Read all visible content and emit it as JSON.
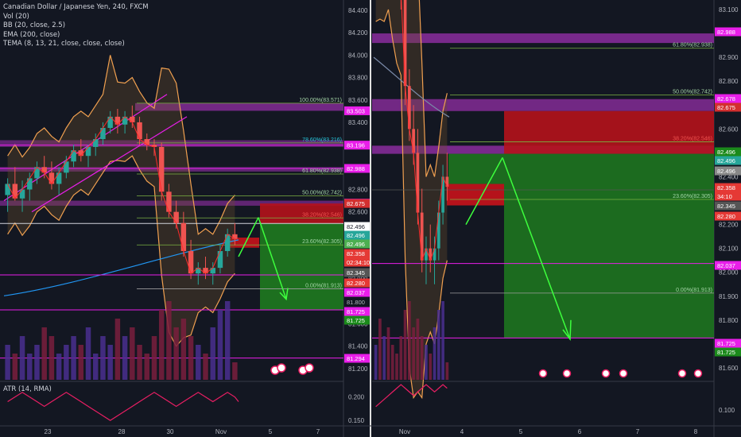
{
  "legend": {
    "title": "Canadian Dollar / Japanese Yen, 240, FXCM",
    "lines": [
      "Vol (20)",
      "BB (20, close, 2.5)",
      "EMA (200, close)",
      "TEMA (8, 13, 21, close, close, close)"
    ],
    "atr": "ATR (14, RMA)"
  },
  "colors": {
    "bg": "#131722",
    "up": "#26a69a",
    "down": "#ef5350",
    "magenta": "#e91ee9",
    "purple_zone": "#8b2d9e",
    "red_zone": "#b5121b",
    "green_zone": "#1f7a1f",
    "bb": "#f0a050",
    "ema": "#2196f3",
    "tema": "#ff2a2a",
    "arrow": "#3dff3d",
    "atr": "#e91e63",
    "axis_text": "#b2b5be"
  },
  "left_axis": {
    "ticks": [
      "84.400",
      "84.200",
      "84.000",
      "83.800",
      "83.600",
      "83.400",
      "83.200",
      "83.000",
      "82.800",
      "82.600",
      "82.400",
      "82.200",
      "82.000",
      "81.800",
      "81.600",
      "81.400",
      "81.200"
    ],
    "atr_ticks": [
      "0.200",
      "0.150"
    ],
    "time_ticks": [
      "23",
      "28",
      "30",
      "Nov",
      "5",
      "7"
    ],
    "tags": [
      {
        "text": "83.503",
        "c": "#e91ee9"
      },
      {
        "text": "83.196",
        "c": "#e91ee9"
      },
      {
        "text": "82.988",
        "c": "#e91ee9"
      },
      {
        "text": "82.678",
        "c": "#e91ee9"
      },
      {
        "text": "82.675",
        "c": "#d32f2f"
      },
      {
        "text": "82.496",
        "c": "#ffffff"
      },
      {
        "text": "82.496",
        "c": "#26a69a"
      },
      {
        "text": "82.496",
        "c": "#4caf50"
      },
      {
        "text": "82.358",
        "c": "#e53935"
      },
      {
        "text": "02:34:10",
        "c": "#e53935"
      },
      {
        "text": "82.345",
        "c": "#555555"
      },
      {
        "text": "82.280",
        "c": "#e53935"
      },
      {
        "text": "82.037",
        "c": "#e91ee9"
      },
      {
        "text": "81.800",
        "c": "#131722"
      },
      {
        "text": "81.725",
        "c": "#e91ee9"
      },
      {
        "text": "81.725",
        "c": "#1b8a1b"
      },
      {
        "text": "81.294",
        "c": "#e91ee9"
      }
    ]
  },
  "right_axis": {
    "ticks": [
      "83.100",
      "82.900",
      "82.800",
      "82.600",
      "82.400",
      "82.200",
      "82.100",
      "82.000",
      "81.900",
      "81.800",
      "81.600"
    ],
    "atr_ticks": [
      "0.100"
    ],
    "time_ticks": [
      "Nov",
      "4",
      "5",
      "6",
      "7",
      "8"
    ],
    "tags": [
      {
        "text": "82.988",
        "c": "#e91ee9"
      },
      {
        "text": "82.678",
        "c": "#e91ee9"
      },
      {
        "text": "82.675",
        "c": "#d32f2f"
      },
      {
        "text": "82.496",
        "c": "#1b8a1b"
      },
      {
        "text": "82.496",
        "c": "#26a69a"
      },
      {
        "text": "82.496",
        "c": "#888888"
      },
      {
        "text": "82.358",
        "c": "#e53935"
      },
      {
        "text": "34:10",
        "c": "#e53935"
      },
      {
        "text": "82.345",
        "c": "#555555"
      },
      {
        "text": "82.280",
        "c": "#e53935"
      },
      {
        "text": "82.037",
        "c": "#e91ee9"
      },
      {
        "text": "81.725",
        "c": "#e91ee9"
      },
      {
        "text": "81.725",
        "c": "#1b8a1b"
      }
    ]
  },
  "fib_left": [
    "100.00%(83.571)",
    "78.60%(83.216)",
    "61.80%(82.938)",
    "50.00%(82.742)",
    "38.20%(82.546)",
    "23.60%(82.305)",
    "0.00%(81.913)"
  ],
  "fib_right": [
    "61.80%(82.938)",
    "50.00%(82.742)",
    "38.20%(82.546)",
    "23.60%(82.305)",
    "0.00%(81.913)"
  ],
  "chart_data": {
    "type": "candlestick",
    "symbol": "CADJPY",
    "interval": "240",
    "last_price": 82.358,
    "left_ylim": [
      81.1,
      84.45
    ],
    "right_ylim": [
      81.55,
      83.12
    ],
    "candles": [
      [
        82.75,
        82.9,
        82.6,
        82.85
      ],
      [
        82.85,
        83.0,
        82.7,
        82.72
      ],
      [
        82.72,
        82.88,
        82.6,
        82.8
      ],
      [
        82.8,
        82.95,
        82.7,
        82.9
      ],
      [
        82.9,
        83.05,
        82.85,
        83.0
      ],
      [
        83.0,
        83.1,
        82.9,
        82.95
      ],
      [
        82.95,
        83.05,
        82.8,
        82.85
      ],
      [
        82.85,
        83.0,
        82.75,
        82.95
      ],
      [
        82.95,
        83.1,
        82.9,
        83.05
      ],
      [
        83.05,
        83.2,
        83.0,
        83.15
      ],
      [
        83.15,
        83.25,
        83.05,
        83.1
      ],
      [
        83.1,
        83.2,
        83.0,
        83.18
      ],
      [
        83.18,
        83.3,
        83.1,
        83.25
      ],
      [
        83.25,
        83.4,
        83.2,
        83.35
      ],
      [
        83.35,
        83.5,
        83.3,
        83.45
      ],
      [
        83.45,
        83.52,
        83.3,
        83.38
      ],
      [
        83.38,
        83.5,
        83.3,
        83.45
      ],
      [
        83.45,
        83.55,
        83.35,
        83.4
      ],
      [
        83.4,
        83.45,
        83.2,
        83.25
      ],
      [
        83.25,
        83.3,
        83.15,
        83.2
      ],
      [
        83.2,
        83.25,
        83.1,
        83.18
      ],
      [
        83.18,
        83.22,
        82.7,
        82.78
      ],
      [
        82.78,
        82.85,
        82.55,
        82.6
      ],
      [
        82.6,
        82.7,
        82.45,
        82.5
      ],
      [
        82.5,
        82.6,
        82.2,
        82.25
      ],
      [
        82.25,
        82.35,
        82.0,
        82.05
      ],
      [
        82.05,
        82.15,
        81.95,
        82.1
      ],
      [
        82.1,
        82.2,
        82.0,
        82.05
      ],
      [
        82.05,
        82.15,
        81.95,
        82.1
      ],
      [
        82.1,
        82.3,
        82.05,
        82.25
      ],
      [
        82.25,
        82.45,
        82.2,
        82.4
      ],
      [
        82.4,
        82.5,
        82.3,
        82.358
      ]
    ],
    "volume": [
      4,
      3,
      5,
      3,
      4,
      6,
      5,
      3,
      4,
      5,
      4,
      6,
      3,
      5,
      4,
      7,
      5,
      6,
      4,
      3,
      5,
      8,
      9,
      6,
      7,
      5,
      4,
      3,
      6,
      8,
      9,
      2
    ],
    "atr": [
      0.19,
      0.2,
      0.21,
      0.2,
      0.19,
      0.18,
      0.19,
      0.2,
      0.21,
      0.2,
      0.19,
      0.18,
      0.17,
      0.16,
      0.15,
      0.16,
      0.17,
      0.18,
      0.19,
      0.2,
      0.21,
      0.2,
      0.19,
      0.18,
      0.19,
      0.2,
      0.21,
      0.2,
      0.19,
      0.2,
      0.21,
      0.2
    ],
    "levels": [
      83.571,
      83.503,
      83.196,
      82.988,
      82.742,
      82.678,
      82.546,
      82.496,
      82.305,
      82.037,
      81.913,
      81.725,
      81.294
    ]
  }
}
